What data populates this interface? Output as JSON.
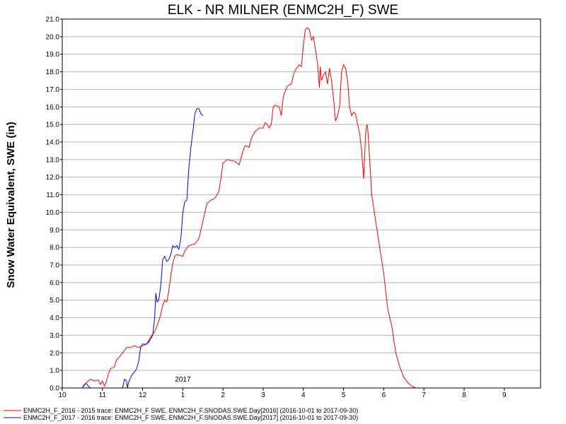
{
  "chart_data": {
    "type": "line",
    "title": "ELK - NR MILNER (ENMC2H_F) SWE",
    "ylabel": "Snow Water Equivalent, SWE (in)",
    "xlabel": "",
    "xlim": [
      10,
      10.98
    ],
    "ylim": [
      0,
      21
    ],
    "grid": true,
    "legend_position": "bottom",
    "y_ticks": [
      "0.0",
      "1.0",
      "2.0",
      "3.0",
      "4.0",
      "5.0",
      "6.0",
      "7.0",
      "8.0",
      "9.0",
      "10.0",
      "11.0",
      "12.0",
      "13.0",
      "14.0",
      "15.0",
      "16.0",
      "17.0",
      "18.0",
      "19.0",
      "20.0",
      "21.0"
    ],
    "x_ticks": [
      {
        "label": "10",
        "pos": 0
      },
      {
        "label": "11",
        "pos": 1
      },
      {
        "label": "12",
        "pos": 2
      },
      {
        "label": "1",
        "pos": 3
      },
      {
        "label": "2",
        "pos": 4
      },
      {
        "label": "3",
        "pos": 5
      },
      {
        "label": "4",
        "pos": 6
      },
      {
        "label": "5",
        "pos": 7
      },
      {
        "label": "6",
        "pos": 8
      },
      {
        "label": "7",
        "pos": 9
      },
      {
        "label": "8",
        "pos": 10
      },
      {
        "label": "9",
        "pos": 11
      }
    ],
    "year_label": {
      "label": "2017",
      "pos": 3
    },
    "series": [
      {
        "name": "ENMC2H_F_2016 - 2015 trace: ENMC2H_F SWE, ENMC2H_F.SNODAS.SWE.Day[2016] (2016-10-01 to 2017-09-30)",
        "color": "#ff0000",
        "points": [
          [
            0.0,
            0
          ],
          [
            0.5,
            0
          ],
          [
            0.6,
            0.3
          ],
          [
            0.7,
            0.5
          ],
          [
            0.8,
            0.4
          ],
          [
            0.9,
            0.45
          ],
          [
            0.95,
            0.2
          ],
          [
            1.0,
            0.4
          ],
          [
            1.05,
            0.1
          ],
          [
            1.1,
            0.4
          ],
          [
            1.15,
            0.8
          ],
          [
            1.2,
            1.1
          ],
          [
            1.3,
            1.2
          ],
          [
            1.35,
            1.6
          ],
          [
            1.4,
            1.7
          ],
          [
            1.5,
            2.0
          ],
          [
            1.6,
            2.3
          ],
          [
            1.7,
            2.3
          ],
          [
            1.8,
            2.4
          ],
          [
            1.9,
            2.3
          ],
          [
            2.0,
            2.4
          ],
          [
            2.1,
            2.5
          ],
          [
            2.2,
            2.9
          ],
          [
            2.3,
            3.2
          ],
          [
            2.4,
            3.8
          ],
          [
            2.45,
            4.2
          ],
          [
            2.5,
            4.7
          ],
          [
            2.55,
            5.0
          ],
          [
            2.6,
            4.9
          ],
          [
            2.65,
            5.5
          ],
          [
            2.7,
            6.4
          ],
          [
            2.75,
            7.1
          ],
          [
            2.8,
            7.5
          ],
          [
            2.85,
            7.6
          ],
          [
            3.0,
            7.5
          ],
          [
            3.05,
            7.8
          ],
          [
            3.15,
            8.1
          ],
          [
            3.3,
            8.2
          ],
          [
            3.4,
            8.5
          ],
          [
            3.5,
            9.5
          ],
          [
            3.6,
            10.5
          ],
          [
            3.7,
            10.7
          ],
          [
            3.8,
            10.8
          ],
          [
            3.9,
            11.2
          ],
          [
            3.95,
            12.0
          ],
          [
            4.0,
            12.8
          ],
          [
            4.1,
            13.0
          ],
          [
            4.3,
            12.9
          ],
          [
            4.4,
            12.7
          ],
          [
            4.5,
            13.5
          ],
          [
            4.55,
            13.8
          ],
          [
            4.65,
            13.7
          ],
          [
            4.7,
            14.2
          ],
          [
            4.8,
            14.6
          ],
          [
            4.9,
            14.8
          ],
          [
            5.0,
            14.8
          ],
          [
            5.05,
            15.1
          ],
          [
            5.1,
            15.0
          ],
          [
            5.15,
            14.8
          ],
          [
            5.2,
            15.0
          ],
          [
            5.25,
            16.0
          ],
          [
            5.3,
            16.1
          ],
          [
            5.4,
            16.0
          ],
          [
            5.45,
            15.5
          ],
          [
            5.5,
            16.6
          ],
          [
            5.6,
            17.2
          ],
          [
            5.7,
            17.3
          ],
          [
            5.75,
            17.8
          ],
          [
            5.8,
            18.1
          ],
          [
            5.9,
            18.4
          ],
          [
            5.95,
            18.3
          ],
          [
            6.0,
            19.5
          ],
          [
            6.05,
            20.4
          ],
          [
            6.1,
            20.5
          ],
          [
            6.15,
            20.4
          ],
          [
            6.2,
            19.8
          ],
          [
            6.25,
            20.0
          ],
          [
            6.3,
            19.3
          ],
          [
            6.35,
            18.5
          ],
          [
            6.4,
            17.1
          ],
          [
            6.42,
            18.3
          ],
          [
            6.45,
            17.5
          ],
          [
            6.5,
            17.8
          ],
          [
            6.55,
            18.0
          ],
          [
            6.6,
            17.3
          ],
          [
            6.65,
            18.2
          ],
          [
            6.7,
            17.5
          ],
          [
            6.75,
            16.5
          ],
          [
            6.8,
            15.2
          ],
          [
            6.85,
            15.5
          ],
          [
            6.9,
            16.0
          ],
          [
            6.95,
            18.0
          ],
          [
            7.0,
            18.4
          ],
          [
            7.05,
            18.2
          ],
          [
            7.1,
            17.5
          ],
          [
            7.15,
            16.0
          ],
          [
            7.2,
            15.5
          ],
          [
            7.25,
            15.7
          ],
          [
            7.3,
            15.6
          ],
          [
            7.35,
            15.0
          ],
          [
            7.4,
            14.5
          ],
          [
            7.45,
            13.5
          ],
          [
            7.5,
            11.9
          ],
          [
            7.55,
            14.5
          ],
          [
            7.58,
            15.0
          ],
          [
            7.6,
            14.8
          ],
          [
            7.65,
            13.0
          ],
          [
            7.7,
            11.0
          ],
          [
            7.8,
            9.5
          ],
          [
            7.9,
            8.0
          ],
          [
            8.0,
            6.5
          ],
          [
            8.05,
            5.5
          ],
          [
            8.1,
            4.5
          ],
          [
            8.2,
            3.5
          ],
          [
            8.3,
            2.0
          ],
          [
            8.4,
            1.2
          ],
          [
            8.5,
            0.6
          ],
          [
            8.6,
            0.3
          ],
          [
            8.7,
            0.1
          ],
          [
            8.8,
            0.0
          ],
          [
            9.0,
            0.0
          ]
        ]
      },
      {
        "name": "ENMC2H_F_2017 - 2016 trace: ENMC2H_F SWE, ENMC2H_F.SNODAS.SWE.Day[2017] (2016-10-01 to 2017-09-30)",
        "color": "#0000ff",
        "points": [
          [
            0.0,
            0
          ],
          [
            0.5,
            0
          ],
          [
            0.55,
            0.2
          ],
          [
            0.6,
            0.25
          ],
          [
            0.65,
            0.1
          ],
          [
            0.7,
            0
          ],
          [
            1.0,
            0
          ],
          [
            1.5,
            0
          ],
          [
            1.52,
            0.2
          ],
          [
            1.55,
            0.5
          ],
          [
            1.6,
            0.4
          ],
          [
            1.62,
            0
          ],
          [
            1.65,
            0.3
          ],
          [
            1.7,
            0.6
          ],
          [
            1.75,
            0.8
          ],
          [
            1.8,
            0.9
          ],
          [
            1.85,
            1.1
          ],
          [
            1.9,
            1.5
          ],
          [
            1.95,
            2.3
          ],
          [
            2.0,
            2.5
          ],
          [
            2.1,
            2.5
          ],
          [
            2.15,
            2.6
          ],
          [
            2.2,
            2.8
          ],
          [
            2.25,
            3.0
          ],
          [
            2.3,
            4.0
          ],
          [
            2.33,
            5.4
          ],
          [
            2.36,
            4.9
          ],
          [
            2.4,
            5.0
          ],
          [
            2.45,
            5.8
          ],
          [
            2.5,
            7.3
          ],
          [
            2.55,
            7.5
          ],
          [
            2.6,
            7.2
          ],
          [
            2.65,
            7.3
          ],
          [
            2.7,
            7.6
          ],
          [
            2.75,
            8.1
          ],
          [
            2.8,
            8.0
          ],
          [
            2.85,
            8.1
          ],
          [
            2.9,
            7.9
          ],
          [
            2.95,
            8.5
          ],
          [
            3.0,
            10.0
          ],
          [
            3.05,
            10.6
          ],
          [
            3.1,
            10.7
          ],
          [
            3.15,
            12.5
          ],
          [
            3.2,
            13.7
          ],
          [
            3.25,
            14.6
          ],
          [
            3.3,
            15.6
          ],
          [
            3.35,
            15.9
          ],
          [
            3.4,
            15.9
          ],
          [
            3.45,
            15.6
          ],
          [
            3.5,
            15.5
          ]
        ]
      }
    ]
  }
}
